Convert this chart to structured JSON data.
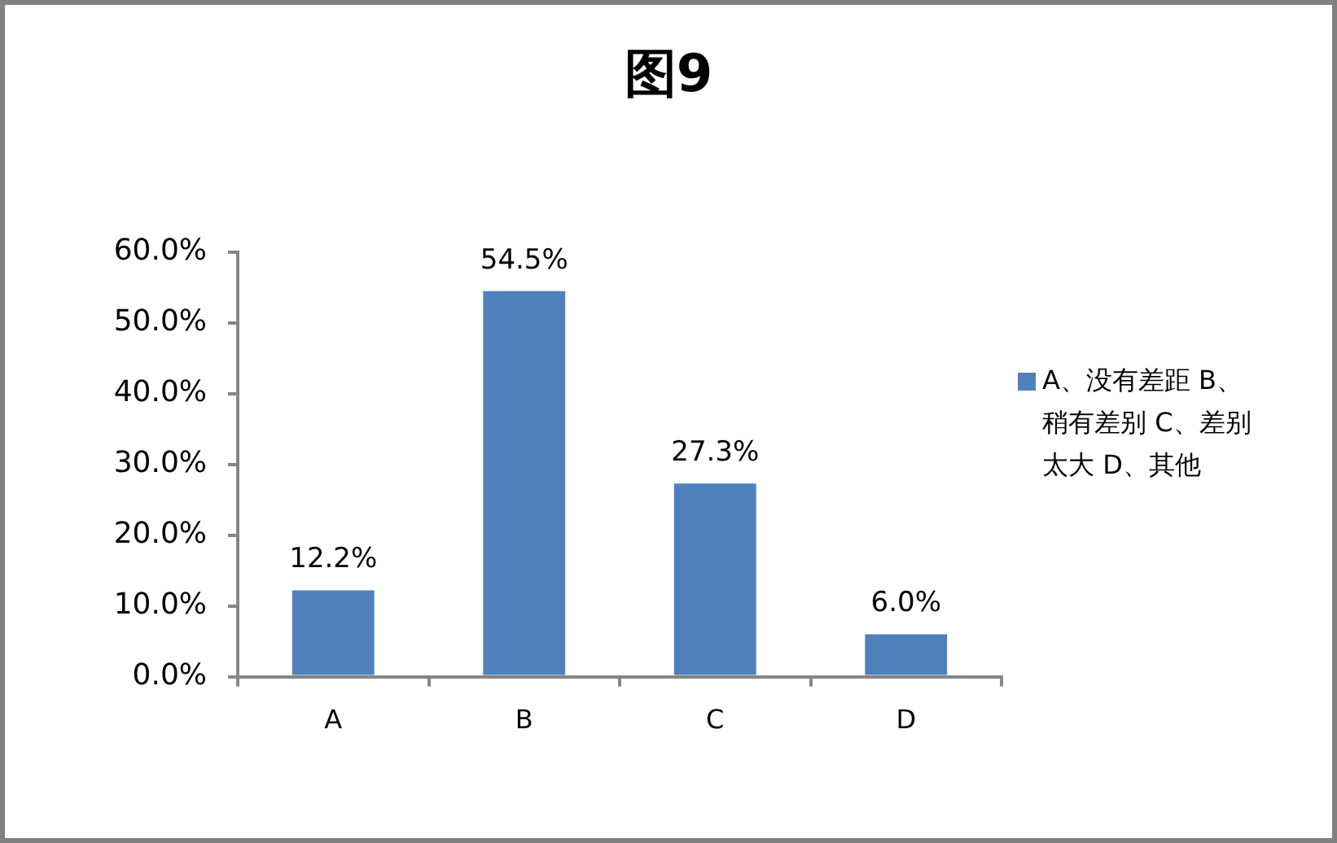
{
  "chart_data": {
    "type": "bar",
    "title": "图9",
    "categories": [
      "A",
      "B",
      "C",
      "D"
    ],
    "series": [
      {
        "name": "A、没有差距 B、稍有差别 C、差别太大 D、其他",
        "color": "#4f81bd",
        "values": [
          12.2,
          54.5,
          27.3,
          6.0
        ],
        "value_labels": [
          "12.2%",
          "54.5%",
          "27.3%",
          "6.0%"
        ]
      }
    ],
    "ylim": [
      0,
      60
    ],
    "yticks": [
      {
        "value": 0,
        "label": "0.0%"
      },
      {
        "value": 10,
        "label": "10.0%"
      },
      {
        "value": 20,
        "label": "20.0%"
      },
      {
        "value": 30,
        "label": "30.0%"
      },
      {
        "value": 40,
        "label": "40.0%"
      },
      {
        "value": 50,
        "label": "50.0%"
      },
      {
        "value": 60,
        "label": "60.0%"
      }
    ],
    "legend": "right"
  }
}
